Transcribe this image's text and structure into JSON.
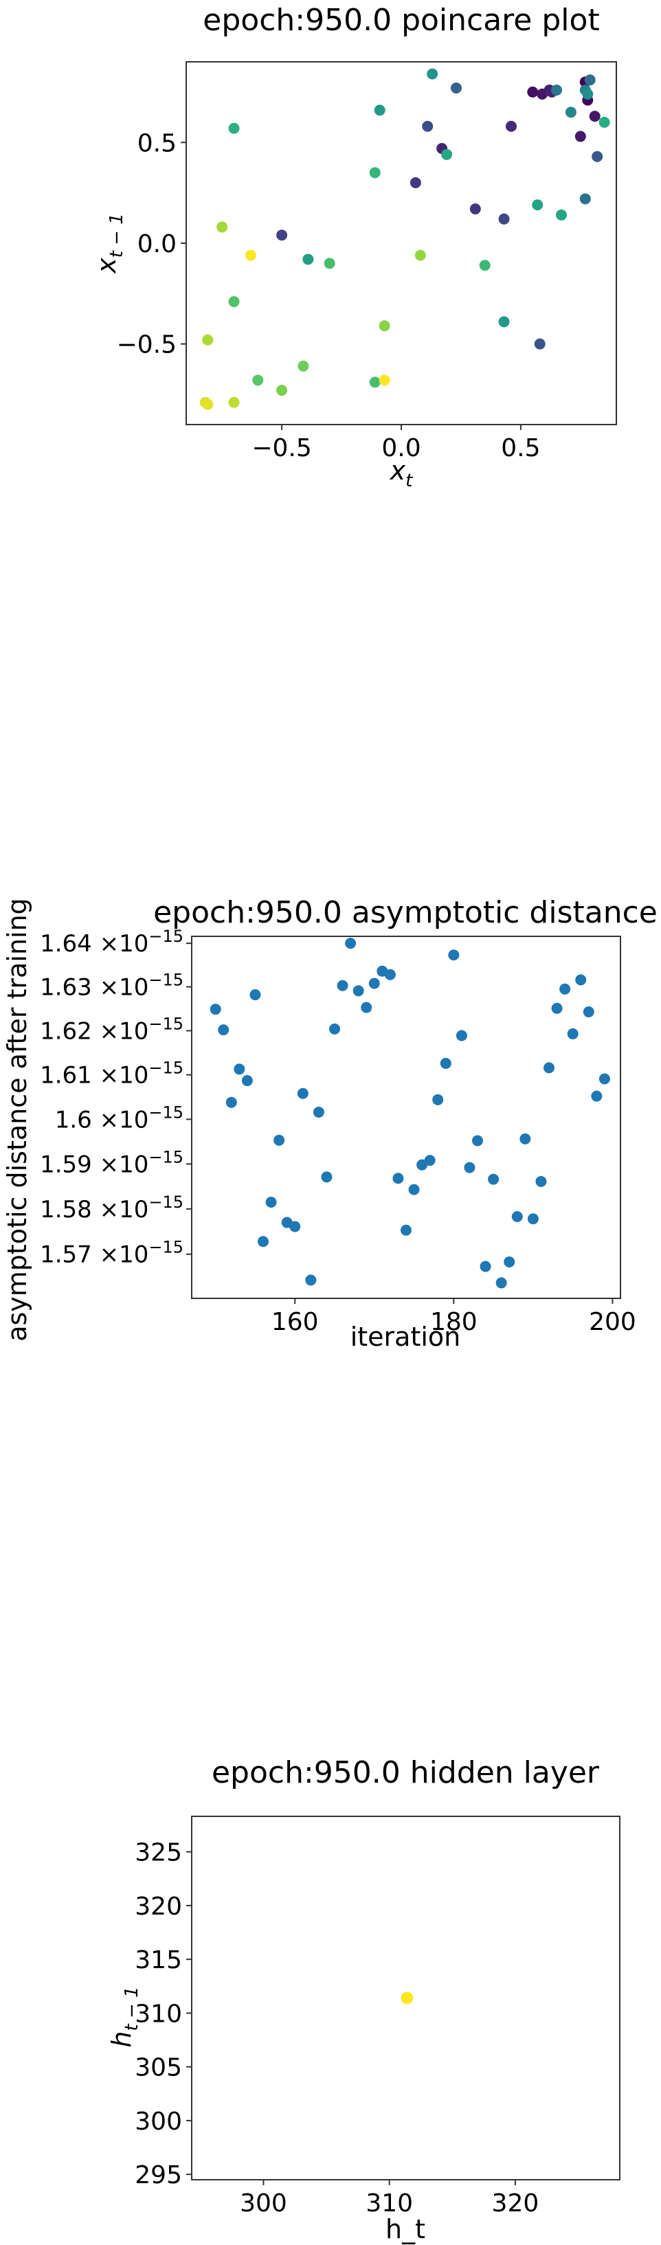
{
  "charts": [
    {
      "id": "poincare",
      "title": "epoch:950.0 poincare plot",
      "xlabel_main": "x",
      "xlabel_sub": "t",
      "ylabel_main": "x",
      "ylabel_sub": "t − 1"
    },
    {
      "id": "distance",
      "title": "epoch:950.0 asymptotic distance",
      "xlabel": "iteration",
      "ylabel": "asymptotic distance after training"
    },
    {
      "id": "hidden",
      "title": "epoch:950.0 hidden layer",
      "xlabel": "h_t",
      "ylabel_main": "h",
      "ylabel_sub": "t − 1"
    }
  ],
  "chart_data": [
    {
      "type": "scatter",
      "title": "epoch:950.0 poincare plot",
      "xlabel": "x_t",
      "ylabel": "x_{t-1}",
      "xlim": [
        -0.9,
        0.9
      ],
      "ylim": [
        -0.9,
        0.9
      ],
      "xticks": [
        -0.5,
        0.0,
        0.5
      ],
      "xtick_labels": [
        "−0.5",
        "0.0",
        "0.5"
      ],
      "yticks": [
        -0.5,
        0.0,
        0.5
      ],
      "ytick_labels": [
        "−0.5",
        "0.0",
        "0.5"
      ],
      "colormap": "viridis",
      "grid": false,
      "points": [
        {
          "x": 0.77,
          "y": 0.8,
          "c": 0.0
        },
        {
          "x": 0.78,
          "y": 0.71,
          "c": 0.02
        },
        {
          "x": 0.55,
          "y": 0.75,
          "c": 0.04
        },
        {
          "x": 0.59,
          "y": 0.74,
          "c": 0.06
        },
        {
          "x": 0.62,
          "y": 0.76,
          "c": 0.08
        },
        {
          "x": 0.63,
          "y": 0.75,
          "c": 0.1
        },
        {
          "x": 0.81,
          "y": 0.63,
          "c": 0.06
        },
        {
          "x": 0.75,
          "y": 0.53,
          "c": 0.07
        },
        {
          "x": 0.46,
          "y": 0.58,
          "c": 0.12
        },
        {
          "x": 0.17,
          "y": 0.47,
          "c": 0.1
        },
        {
          "x": 0.06,
          "y": 0.3,
          "c": 0.16
        },
        {
          "x": 0.11,
          "y": 0.58,
          "c": 0.24
        },
        {
          "x": 0.31,
          "y": 0.17,
          "c": 0.16
        },
        {
          "x": 0.43,
          "y": 0.12,
          "c": 0.22
        },
        {
          "x": 0.82,
          "y": 0.43,
          "c": 0.28
        },
        {
          "x": 0.58,
          "y": -0.5,
          "c": 0.26
        },
        {
          "x": -0.5,
          "y": 0.04,
          "c": 0.2
        },
        {
          "x": 0.23,
          "y": 0.77,
          "c": 0.32
        },
        {
          "x": 0.79,
          "y": 0.81,
          "c": 0.36
        },
        {
          "x": 0.65,
          "y": 0.76,
          "c": 0.4
        },
        {
          "x": 0.77,
          "y": 0.76,
          "c": 0.44
        },
        {
          "x": 0.77,
          "y": 0.22,
          "c": 0.38
        },
        {
          "x": 0.71,
          "y": 0.65,
          "c": 0.46
        },
        {
          "x": 0.78,
          "y": 0.74,
          "c": 0.5
        },
        {
          "x": 0.13,
          "y": 0.84,
          "c": 0.52
        },
        {
          "x": -0.09,
          "y": 0.66,
          "c": 0.54
        },
        {
          "x": 0.19,
          "y": 0.44,
          "c": 0.6
        },
        {
          "x": -0.39,
          "y": -0.08,
          "c": 0.56
        },
        {
          "x": 0.43,
          "y": -0.39,
          "c": 0.54
        },
        {
          "x": 0.57,
          "y": 0.19,
          "c": 0.58
        },
        {
          "x": 0.67,
          "y": 0.14,
          "c": 0.6
        },
        {
          "x": 0.85,
          "y": 0.6,
          "c": 0.62
        },
        {
          "x": -0.7,
          "y": 0.57,
          "c": 0.64
        },
        {
          "x": -0.11,
          "y": 0.35,
          "c": 0.66
        },
        {
          "x": 0.35,
          "y": -0.11,
          "c": 0.68
        },
        {
          "x": -0.3,
          "y": -0.1,
          "c": 0.7
        },
        {
          "x": -0.7,
          "y": -0.29,
          "c": 0.72
        },
        {
          "x": -0.11,
          "y": -0.69,
          "c": 0.7
        },
        {
          "x": -0.6,
          "y": -0.68,
          "c": 0.74
        },
        {
          "x": -0.41,
          "y": -0.61,
          "c": 0.78
        },
        {
          "x": -0.5,
          "y": -0.73,
          "c": 0.8
        },
        {
          "x": -0.07,
          "y": -0.41,
          "c": 0.82
        },
        {
          "x": 0.08,
          "y": -0.06,
          "c": 0.84
        },
        {
          "x": -0.75,
          "y": 0.08,
          "c": 0.86
        },
        {
          "x": -0.81,
          "y": -0.48,
          "c": 0.88
        },
        {
          "x": -0.7,
          "y": -0.79,
          "c": 0.9
        },
        {
          "x": -0.82,
          "y": -0.79,
          "c": 0.94
        },
        {
          "x": -0.81,
          "y": -0.8,
          "c": 0.96
        },
        {
          "x": -0.63,
          "y": -0.06,
          "c": 1.0
        },
        {
          "x": -0.07,
          "y": -0.68,
          "c": 1.0
        }
      ]
    },
    {
      "type": "scatter",
      "title": "epoch:950.0 asymptotic distance",
      "xlabel": "iteration",
      "ylabel": "asymptotic distance after training",
      "xlim": [
        147,
        201
      ],
      "ylim": [
        1.5603e-15,
        1.6416e-15
      ],
      "xticks": [
        160,
        180,
        200
      ],
      "xtick_labels": [
        "160",
        "180",
        "200"
      ],
      "yscale": "log",
      "yticks": [
        1.57e-15,
        1.58e-15,
        1.59e-15,
        1.6e-15,
        1.61e-15,
        1.62e-15,
        1.63e-15,
        1.64e-15
      ],
      "ytick_mantissas": [
        "1.57",
        "1.58",
        "1.59",
        "1.6",
        "1.61",
        "1.62",
        "1.63",
        "1.64"
      ],
      "ytick_times": "×10",
      "ytick_exponent": "−15",
      "color": "#1f77b4",
      "grid": false,
      "x": [
        150,
        151,
        152,
        153,
        154,
        155,
        156,
        157,
        158,
        159,
        160,
        161,
        162,
        163,
        164,
        165,
        166,
        167,
        168,
        169,
        170,
        171,
        172,
        173,
        174,
        175,
        176,
        177,
        178,
        179,
        180,
        181,
        182,
        183,
        184,
        185,
        186,
        187,
        188,
        189,
        190,
        191,
        192,
        193,
        194,
        195,
        196,
        197,
        198,
        199
      ],
      "y": [
        1.6249e-15,
        1.6202e-15,
        1.6038e-15,
        1.6113e-15,
        1.6087e-15,
        1.6282e-15,
        1.5728e-15,
        1.5815e-15,
        1.5953e-15,
        1.577e-15,
        1.5761e-15,
        1.6058e-15,
        1.5643e-15,
        1.6016e-15,
        1.5871e-15,
        1.6204e-15,
        1.6303e-15,
        1.64e-15,
        1.6291e-15,
        1.6253e-15,
        1.6308e-15,
        1.6336e-15,
        1.6328e-15,
        1.5868e-15,
        1.5753e-15,
        1.5843e-15,
        1.5898e-15,
        1.5908e-15,
        1.6044e-15,
        1.6126e-15,
        1.6373e-15,
        1.6189e-15,
        1.5892e-15,
        1.5952e-15,
        1.5673e-15,
        1.5866e-15,
        1.5637e-15,
        1.5683e-15,
        1.5783e-15,
        1.5956e-15,
        1.5778e-15,
        1.5861e-15,
        1.6116e-15,
        1.6251e-15,
        1.6295e-15,
        1.6193e-15,
        1.6316e-15,
        1.6243e-15,
        1.6052e-15,
        1.6091e-15
      ]
    },
    {
      "type": "scatter",
      "title": "epoch:950.0 hidden layer",
      "xlabel": "h_t",
      "ylabel": "h_{t-1}",
      "xlim": [
        294.3,
        328.3
      ],
      "ylim": [
        294.5,
        328.3
      ],
      "xticks": [
        300,
        310,
        320
      ],
      "xtick_labels": [
        "300",
        "310",
        "320"
      ],
      "yticks": [
        295,
        300,
        305,
        310,
        315,
        320,
        325
      ],
      "ytick_labels": [
        "295",
        "300",
        "305",
        "310",
        "315",
        "320",
        "325"
      ],
      "color": "#fde725",
      "grid": false,
      "points": [
        {
          "x": 311.4,
          "y": 311.4
        }
      ]
    }
  ]
}
